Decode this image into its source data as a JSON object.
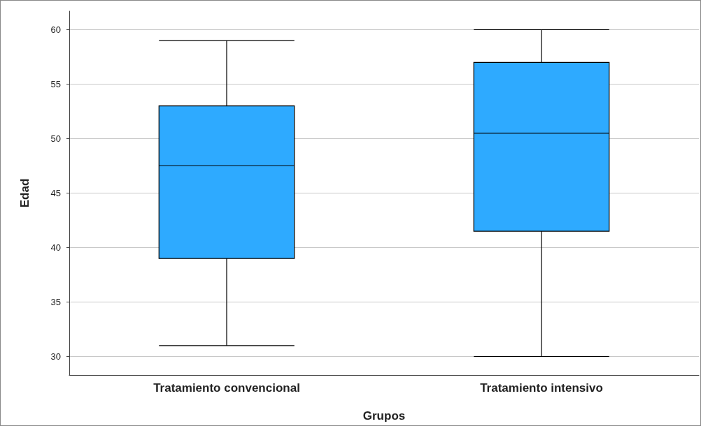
{
  "chart_data": {
    "type": "box",
    "xlabel": "Grupos",
    "ylabel": "Edad",
    "categories": [
      "Tratamiento convencional",
      "Tratamiento intensivo"
    ],
    "boxes": [
      {
        "low": 31,
        "q1": 39,
        "median": 47.5,
        "q3": 53,
        "high": 59
      },
      {
        "low": 30,
        "q1": 41.5,
        "median": 50.5,
        "q3": 57,
        "high": 60
      }
    ],
    "color": "#2eaaff",
    "ylim": [
      28.3,
      61.7
    ],
    "yticks": [
      30,
      35,
      40,
      45,
      50,
      55,
      60
    ],
    "grid": "y"
  }
}
